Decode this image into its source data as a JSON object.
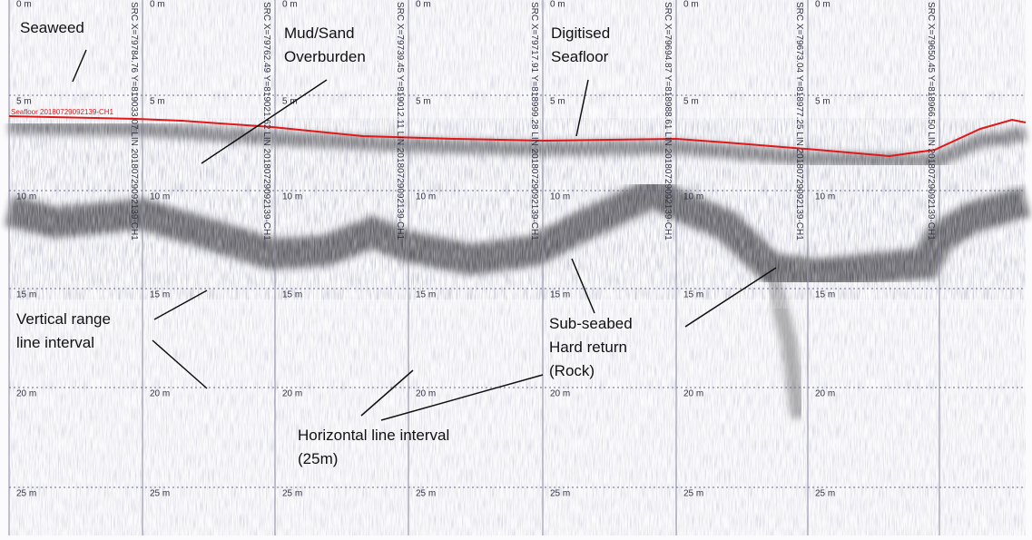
{
  "depth_labels": [
    "0 m",
    "5 m",
    "10 m",
    "15 m",
    "20 m",
    "25 m"
  ],
  "trace_labels": [
    "SRC X=79784.76 Y=819033.07 LIN 20180729092139-CH1",
    "SRC X=79762.49 Y=819021.62 LIN 20180729092139-CH1",
    "SRC X=79739.45 Y=819012.11 LIN 20180729092139-CH1",
    "SRC X=79717.91 Y=818999.28 LIN 20180729092139-CH1",
    "SRC X=79694.87 Y=818988.61 LIN 20180729092139-CH1",
    "SRC X=79673.04 Y=818977.25 LIN 20180729092139-CH1",
    "SRC X=79650.45 Y=818966.50 LIN 20180729092139-CH1"
  ],
  "seafloor_label": "Seafloor 20180729092139-CH1",
  "annotations": [
    {
      "lines": [
        "Seaweed"
      ]
    },
    {
      "lines": [
        "Mud/Sand",
        "Overburden"
      ]
    },
    {
      "lines": [
        "Digitised",
        "Seafloor"
      ]
    },
    {
      "lines": [
        "Sub-seabed",
        "Hard return",
        "(Rock)"
      ]
    },
    {
      "lines": [
        "Vertical range",
        "line interval"
      ]
    },
    {
      "lines": [
        "Horizontal line interval",
        "(25m)"
      ]
    }
  ]
}
